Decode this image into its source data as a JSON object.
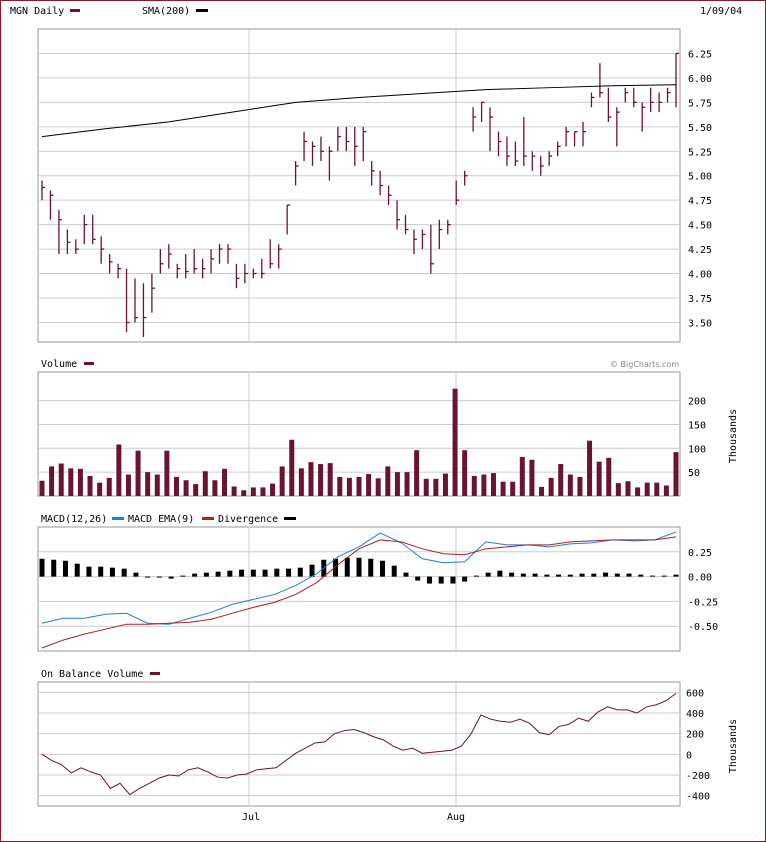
{
  "header": {
    "symbol_label": "MGN Daily",
    "sma_label": "SMA(200)",
    "date": "1/09/04"
  },
  "watermark": "© BigCharts.com",
  "colors": {
    "price": "#6b1430",
    "sma": "#000000",
    "volume": "#6b1430",
    "macd": "#1e7fd8",
    "macd_ema": "#b01e1e",
    "divergence": "#000000",
    "obv": "#6b1430",
    "frame": "#8b1a2b",
    "grid": "#cccccc"
  },
  "x_axis": {
    "tick_labels": [
      "Jul",
      "Aug"
    ]
  },
  "chart_data": [
    {
      "type": "line",
      "title": "MGN Daily",
      "subtype": "ohlc-bars",
      "ylim": [
        3.3,
        6.5
      ],
      "yticks": [
        "3.50",
        "3.75",
        "4.00",
        "4.25",
        "4.50",
        "4.75",
        "5.00",
        "5.25",
        "5.50",
        "5.75",
        "6.00",
        "6.25"
      ],
      "grid": true,
      "price_bars": [
        [
          4.95,
          4.75,
          4.88
        ],
        [
          4.85,
          4.55,
          4.8
        ],
        [
          4.65,
          4.2,
          4.55
        ],
        [
          4.45,
          4.2,
          4.32
        ],
        [
          4.35,
          4.2,
          4.25
        ],
        [
          4.6,
          4.3,
          4.5
        ],
        [
          4.6,
          4.3,
          4.35
        ],
        [
          4.38,
          4.1,
          4.25
        ],
        [
          4.2,
          4.0,
          4.12
        ],
        [
          4.1,
          3.95,
          4.05
        ],
        [
          4.05,
          3.4,
          3.5
        ],
        [
          3.95,
          3.5,
          3.55
        ],
        [
          3.9,
          3.35,
          3.55
        ],
        [
          4.0,
          3.6,
          3.85
        ],
        [
          4.25,
          4.0,
          4.1
        ],
        [
          4.3,
          4.05,
          4.2
        ],
        [
          4.1,
          3.95,
          4.05
        ],
        [
          4.2,
          3.95,
          4.02
        ],
        [
          4.25,
          4.0,
          4.05
        ],
        [
          4.15,
          3.95,
          4.05
        ],
        [
          4.25,
          4.0,
          4.15
        ],
        [
          4.3,
          4.1,
          4.25
        ],
        [
          4.3,
          4.1,
          4.25
        ],
        [
          4.1,
          3.85,
          3.95
        ],
        [
          4.1,
          3.9,
          4.0
        ],
        [
          4.05,
          3.95,
          4.0
        ],
        [
          4.15,
          3.95,
          4.0
        ],
        [
          4.35,
          4.05,
          4.1
        ],
        [
          4.3,
          4.05,
          4.25
        ],
        [
          4.7,
          4.4,
          4.7
        ],
        [
          5.15,
          4.9,
          5.1
        ],
        [
          5.45,
          5.15,
          5.35
        ],
        [
          5.35,
          5.1,
          5.3
        ],
        [
          5.4,
          5.15,
          5.25
        ],
        [
          5.3,
          4.95,
          5.25
        ],
        [
          5.5,
          5.25,
          5.4
        ],
        [
          5.5,
          5.25,
          5.35
        ],
        [
          5.5,
          5.1,
          5.3
        ],
        [
          5.5,
          5.15,
          5.45
        ],
        [
          5.15,
          4.9,
          5.05
        ],
        [
          5.05,
          4.8,
          4.9
        ],
        [
          4.9,
          4.7,
          4.8
        ],
        [
          4.75,
          4.45,
          4.55
        ],
        [
          4.6,
          4.4,
          4.45
        ],
        [
          4.45,
          4.2,
          4.35
        ],
        [
          4.45,
          4.25,
          4.4
        ],
        [
          4.5,
          4.0,
          4.1
        ],
        [
          4.55,
          4.25,
          4.45
        ],
        [
          4.55,
          4.4,
          4.5
        ],
        [
          4.95,
          4.7,
          4.75
        ],
        [
          5.05,
          4.9,
          5.0
        ],
        [
          5.7,
          5.45,
          5.6
        ],
        [
          5.75,
          5.55,
          5.75
        ],
        [
          5.7,
          5.25,
          5.6
        ],
        [
          5.45,
          5.2,
          5.35
        ],
        [
          5.4,
          5.1,
          5.2
        ],
        [
          5.35,
          5.1,
          5.15
        ],
        [
          5.6,
          5.1,
          5.2
        ],
        [
          5.25,
          5.05,
          5.2
        ],
        [
          5.2,
          5.0,
          5.1
        ],
        [
          5.25,
          5.1,
          5.2
        ],
        [
          5.35,
          5.2,
          5.3
        ],
        [
          5.5,
          5.3,
          5.45
        ],
        [
          5.45,
          5.3,
          5.45
        ],
        [
          5.55,
          5.3,
          5.45
        ],
        [
          5.85,
          5.7,
          5.8
        ],
        [
          6.15,
          5.8,
          5.85
        ],
        [
          5.9,
          5.55,
          5.6
        ],
        [
          5.7,
          5.3,
          5.65
        ],
        [
          5.9,
          5.75,
          5.85
        ],
        [
          5.9,
          5.7,
          5.75
        ],
        [
          5.75,
          5.45,
          5.7
        ],
        [
          5.9,
          5.65,
          5.75
        ],
        [
          5.85,
          5.65,
          5.75
        ],
        [
          5.9,
          5.75,
          5.85
        ],
        [
          6.25,
          5.7,
          6.25
        ]
      ],
      "sma_200": [
        5.4,
        5.48,
        5.55,
        5.65,
        5.75,
        5.8,
        5.84,
        5.88,
        5.9,
        5.92,
        5.93
      ]
    },
    {
      "type": "bar",
      "title": "Volume",
      "ylabel": "Thousands",
      "ylim": [
        0,
        260
      ],
      "yticks": [
        "50",
        "100",
        "150",
        "200"
      ],
      "grid": true,
      "values": [
        32,
        62,
        68,
        58,
        57,
        42,
        28,
        38,
        108,
        45,
        95,
        50,
        45,
        95,
        40,
        33,
        25,
        52,
        33,
        57,
        20,
        12,
        18,
        18,
        26,
        62,
        118,
        58,
        71,
        67,
        69,
        40,
        38,
        40,
        46,
        37,
        62,
        50,
        50,
        96,
        36,
        36,
        47,
        225,
        96,
        42,
        45,
        48,
        30,
        30,
        82,
        76,
        19,
        38,
        67,
        45,
        40,
        116,
        72,
        80,
        27,
        31,
        18,
        28,
        28,
        22,
        92
      ]
    },
    {
      "type": "line",
      "title": "MACD(12,26)",
      "ylim": [
        -0.75,
        0.5
      ],
      "yticks": [
        "0.25",
        "0.00",
        "-0.25",
        "-0.50"
      ],
      "grid": true,
      "legend": [
        "MACD EMA(9)",
        "Divergence"
      ],
      "series": [
        {
          "name": "MACD EMA(9)",
          "values": [
            -0.47,
            -0.42,
            -0.42,
            -0.38,
            -0.37,
            -0.47,
            -0.48,
            -0.42,
            -0.36,
            -0.28,
            -0.23,
            -0.18,
            -0.09,
            0.03,
            0.2,
            0.3,
            0.44,
            0.34,
            0.18,
            0.14,
            0.15,
            0.35,
            0.32,
            0.32,
            0.3,
            0.33,
            0.34,
            0.37,
            0.36,
            0.37,
            0.45
          ]
        },
        {
          "name": "Divergence",
          "values": [
            -0.72,
            -0.64,
            -0.58,
            -0.53,
            -0.48,
            -0.48,
            -0.47,
            -0.46,
            -0.43,
            -0.37,
            -0.31,
            -0.26,
            -0.18,
            -0.06,
            0.12,
            0.28,
            0.37,
            0.35,
            0.28,
            0.23,
            0.22,
            0.28,
            0.3,
            0.32,
            0.32,
            0.35,
            0.36,
            0.37,
            0.37,
            0.37,
            0.4
          ]
        },
        {
          "name": "histogram",
          "values": [
            0.18,
            0.17,
            0.16,
            0.13,
            0.1,
            0.1,
            0.09,
            0.08,
            0.04,
            -0.01,
            -0.01,
            -0.02,
            0.01,
            0.03,
            0.04,
            0.05,
            0.06,
            0.07,
            0.07,
            0.07,
            0.08,
            0.08,
            0.09,
            0.12,
            0.17,
            0.18,
            0.19,
            0.19,
            0.18,
            0.16,
            0.11,
            0.04,
            -0.04,
            -0.07,
            -0.07,
            -0.07,
            -0.05,
            0.01,
            0.04,
            0.06,
            0.04,
            0.03,
            0.03,
            0.02,
            0.02,
            0.02,
            0.03,
            0.03,
            0.04,
            0.03,
            0.03,
            0.02,
            0.01,
            0.01,
            0.02
          ]
        }
      ]
    },
    {
      "type": "line",
      "title": "On Balance Volume",
      "ylabel": "Thousands",
      "ylim": [
        -500,
        700
      ],
      "yticks": [
        "600",
        "400",
        "200",
        "0",
        "-200",
        "-400"
      ],
      "grid": true,
      "values": [
        0,
        -60,
        -100,
        -180,
        -130,
        -170,
        -200,
        -330,
        -280,
        -390,
        -330,
        -280,
        -230,
        -200,
        -210,
        -150,
        -130,
        -170,
        -220,
        -230,
        -200,
        -190,
        -150,
        -140,
        -130,
        -60,
        10,
        60,
        110,
        120,
        200,
        230,
        240,
        210,
        170,
        140,
        80,
        40,
        60,
        10,
        20,
        30,
        40,
        80,
        200,
        380,
        340,
        320,
        310,
        340,
        300,
        210,
        190,
        270,
        290,
        350,
        320,
        410,
        460,
        430,
        430,
        400,
        460,
        480,
        520,
        590
      ]
    }
  ]
}
